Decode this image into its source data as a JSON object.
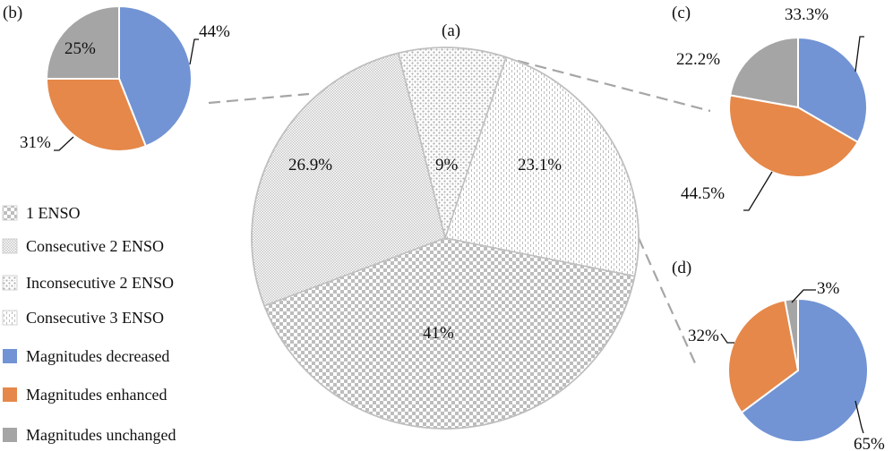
{
  "chart_data": [
    {
      "panel": "(a)",
      "type": "pie",
      "slices": [
        {
          "name": "Inconsecutive 2 ENSO",
          "label": "9%",
          "value": 9,
          "pattern": "dots"
        },
        {
          "name": "Consecutive 3 ENSO",
          "label": "23.1%",
          "value": 23.1,
          "pattern": "vlines"
        },
        {
          "name": "1 ENSO",
          "label": "41%",
          "value": 41,
          "pattern": "checker"
        },
        {
          "name": "Consecutive 2 ENSO",
          "label": "26.9%",
          "value": 26.9,
          "pattern": "fine"
        }
      ]
    },
    {
      "panel": "(b)",
      "type": "pie",
      "slices": [
        {
          "name": "Magnitudes decreased",
          "label": "44%",
          "value": 44
        },
        {
          "name": "Magnitudes enhanced",
          "label": "31%",
          "value": 31
        },
        {
          "name": "Magnitudes unchanged",
          "label": "25%",
          "value": 25
        }
      ]
    },
    {
      "panel": "(c)",
      "type": "pie",
      "slices": [
        {
          "name": "Magnitudes decreased",
          "label": "33.3%",
          "value": 33.3
        },
        {
          "name": "Magnitudes enhanced",
          "label": "44.5%",
          "value": 44.5
        },
        {
          "name": "Magnitudes unchanged",
          "label": "22.2%",
          "value": 22.2
        }
      ]
    },
    {
      "panel": "(d)",
      "type": "pie",
      "slices": [
        {
          "name": "Magnitudes decreased",
          "label": "65%",
          "value": 65
        },
        {
          "name": "Magnitudes enhanced",
          "label": "32%",
          "value": 32
        },
        {
          "name": "Magnitudes unchanged",
          "label": "3%",
          "value": 3
        }
      ]
    }
  ],
  "legend": [
    {
      "label": "1 ENSO",
      "swatch": "checker"
    },
    {
      "label": "Consecutive 2 ENSO",
      "swatch": "fine"
    },
    {
      "label": "Inconsecutive 2 ENSO",
      "swatch": "dots"
    },
    {
      "label": "Consecutive 3 ENSO",
      "swatch": "vlines"
    },
    {
      "label": "Magnitudes decreased",
      "swatch": "blue"
    },
    {
      "label": "Magnitudes enhanced",
      "swatch": "orange"
    },
    {
      "label": "Magnitudes unchanged",
      "swatch": "gray"
    }
  ],
  "colors": {
    "decreased": "#7294D4",
    "enhanced": "#E5884A",
    "unchanged": "#A5A5A5",
    "pattern_ink": "#BDBDBD",
    "leader_line": "#A6A6A6"
  }
}
